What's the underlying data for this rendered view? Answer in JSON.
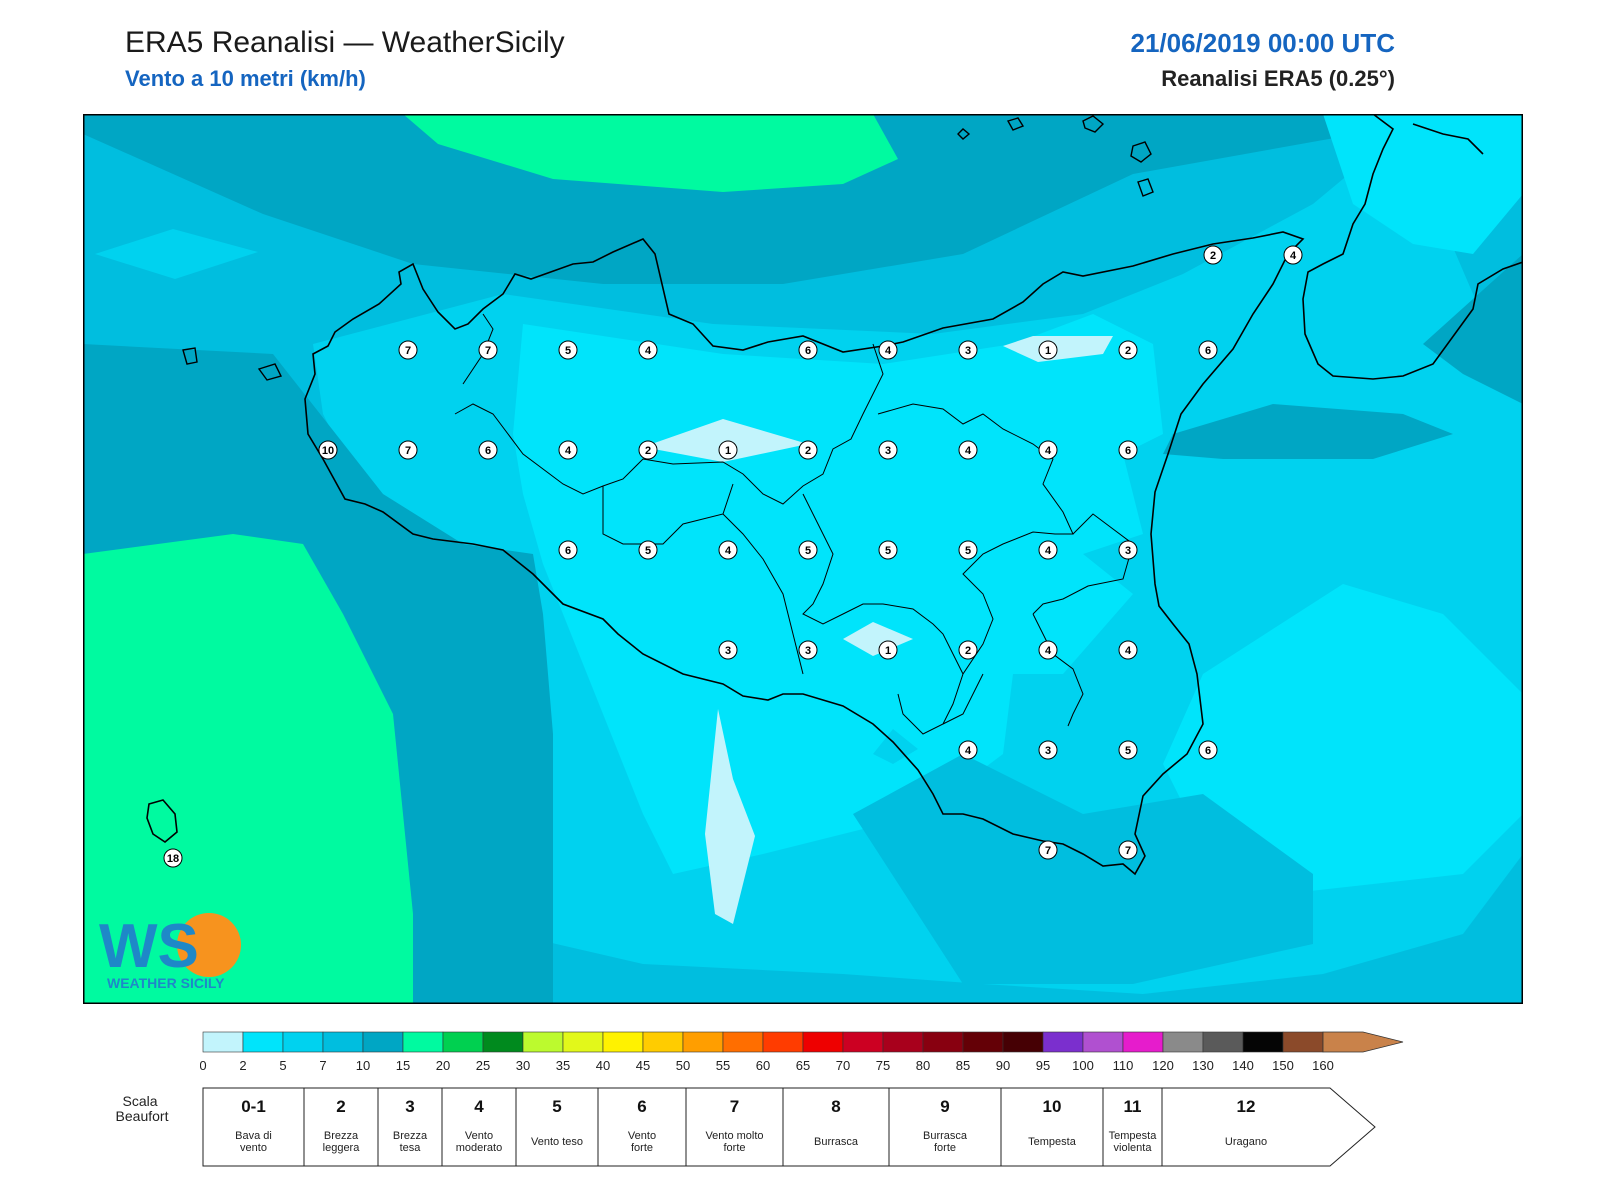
{
  "header": {
    "title": "ERA5 Reanalisi — WeatherSicily",
    "subtitle": "Vento a 10 metri (km/h)",
    "datetime": "21/06/2019 00:00 UTC",
    "source": "Reanalisi ERA5 (0.25°)"
  },
  "logo": {
    "letters": "WS",
    "text": "WEATHER SICILY"
  },
  "colorbar": {
    "ticks": [
      "0",
      "2",
      "5",
      "7",
      "10",
      "15",
      "20",
      "25",
      "30",
      "35",
      "40",
      "45",
      "50",
      "55",
      "60",
      "65",
      "70",
      "75",
      "80",
      "85",
      "90",
      "95",
      "100",
      "110",
      "120",
      "130",
      "140",
      "150",
      "160"
    ],
    "colors": [
      "#c2f4fc",
      "#00e4fb",
      "#00d2ef",
      "#00bedf",
      "#00a6c4",
      "#00faa0",
      "#00d050",
      "#008a1e",
      "#bcfa2e",
      "#e2f81a",
      "#fff200",
      "#ffcc00",
      "#ff9e00",
      "#ff6e00",
      "#ff3c00",
      "#ee0000",
      "#cc0022",
      "#a8001c",
      "#880010",
      "#640006",
      "#460004",
      "#7b2fce",
      "#b050d0",
      "#e61ccc",
      "#8a8a8a",
      "#5a5a5a",
      "#050505",
      "#8b4a2a",
      "#c9824a"
    ]
  },
  "beaufort": {
    "label": "Scala Beaufort",
    "classes": [
      {
        "num": "0-1",
        "desc": [
          "Bava di",
          "vento"
        ]
      },
      {
        "num": "2",
        "desc": [
          "Brezza",
          "leggera"
        ]
      },
      {
        "num": "3",
        "desc": [
          "Brezza",
          "tesa"
        ]
      },
      {
        "num": "4",
        "desc": [
          "Vento",
          "moderato"
        ]
      },
      {
        "num": "5",
        "desc": [
          "Vento teso"
        ]
      },
      {
        "num": "6",
        "desc": [
          "Vento",
          "forte"
        ]
      },
      {
        "num": "7",
        "desc": [
          "Vento molto",
          "forte"
        ]
      },
      {
        "num": "8",
        "desc": [
          "Burrasca"
        ]
      },
      {
        "num": "9",
        "desc": [
          "Burrasca",
          "forte"
        ]
      },
      {
        "num": "10",
        "desc": [
          "Tempesta"
        ]
      },
      {
        "num": "11",
        "desc": [
          "Tempesta",
          "violenta"
        ]
      },
      {
        "num": "12",
        "desc": [
          "Uragano"
        ]
      }
    ]
  },
  "stations": {
    "rows": [
      [
        "7",
        "7",
        "5",
        "4",
        "6",
        "4",
        "3",
        "1",
        "2",
        "6"
      ],
      [
        "10",
        "7",
        "6",
        "4",
        "2",
        "1",
        "2",
        "3",
        "4",
        "4",
        "6"
      ],
      [
        "6",
        "5",
        "4",
        "5",
        "5",
        "5",
        "4",
        "3"
      ],
      [
        "3",
        "3",
        "1",
        "2",
        "4",
        "4"
      ],
      [
        "4",
        "3",
        "5",
        "6"
      ],
      [
        "7",
        "7"
      ]
    ],
    "extra": [
      "2",
      "4",
      "18"
    ]
  }
}
